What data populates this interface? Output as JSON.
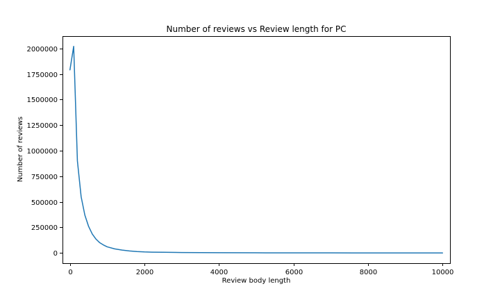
{
  "chart_data": {
    "type": "line",
    "title": "Number of reviews vs Review length for PC",
    "xlabel": "Review body length",
    "ylabel": "Number of reviews",
    "xlim": [
      -200,
      10200
    ],
    "ylim": [
      -100000,
      2120000
    ],
    "xticks": [
      0,
      2000,
      4000,
      6000,
      8000,
      10000
    ],
    "xtick_labels": [
      "0",
      "2000",
      "4000",
      "6000",
      "8000",
      "10000"
    ],
    "yticks": [
      0,
      250000,
      500000,
      750000,
      1000000,
      1250000,
      1500000,
      1750000,
      2000000
    ],
    "ytick_labels": [
      "0",
      "250000",
      "500000",
      "750000",
      "1000000",
      "1250000",
      "1500000",
      "1750000",
      "2000000"
    ],
    "grid": false,
    "legend": null,
    "series": [
      {
        "color": "#1f77b4",
        "x": [
          0,
          100,
          200,
          300,
          400,
          500,
          600,
          700,
          800,
          900,
          1000,
          1200,
          1400,
          1600,
          1800,
          2000,
          2200,
          2500,
          3000,
          3500,
          4000,
          5000,
          6000,
          7000,
          8000,
          9000,
          10000
        ],
        "y": [
          1790000,
          2020000,
          900000,
          550000,
          370000,
          260000,
          185000,
          135000,
          100000,
          78000,
          60000,
          40000,
          28000,
          20000,
          14000,
          10000,
          8000,
          6500,
          4500,
          3200,
          2500,
          1500,
          1000,
          700,
          500,
          300,
          200
        ]
      }
    ]
  }
}
